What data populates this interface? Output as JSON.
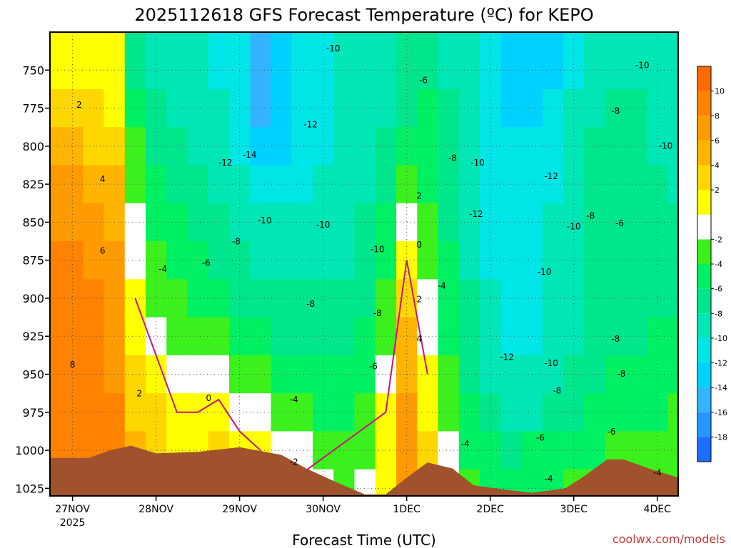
{
  "chart_data": {
    "type": "heatmap",
    "title": "2025112618 GFS Forecast Temperature (ºC) for KEPO",
    "xlabel": "Forecast Time (UTC)",
    "ylabel": "",
    "credit": "coolwx.com/models",
    "pressure_levels": [
      750,
      775,
      800,
      825,
      850,
      875,
      900,
      925,
      950,
      975,
      1000,
      1025
    ],
    "y_tick_labels": [
      "750",
      "775",
      "800",
      "825",
      "850",
      "875",
      "900",
      "925",
      "950",
      "975",
      "1000",
      "1025"
    ],
    "ylim": [
      725,
      1030
    ],
    "y_inverted": true,
    "x_ticks": [
      {
        "label": "27NOV",
        "sublabel": "2025",
        "day": 0
      },
      {
        "label": "28NOV",
        "sublabel": "",
        "day": 1
      },
      {
        "label": "29NOV",
        "sublabel": "",
        "day": 2
      },
      {
        "label": "30NOV",
        "sublabel": "",
        "day": 3
      },
      {
        "label": "1DEC",
        "sublabel": "",
        "day": 4
      },
      {
        "label": "2DEC",
        "sublabel": "",
        "day": 5
      },
      {
        "label": "3DEC",
        "sublabel": "",
        "day": 6
      },
      {
        "label": "4DEC",
        "sublabel": "",
        "day": 7
      }
    ],
    "xlim_days": [
      -0.27,
      7.25
    ],
    "grid": true,
    "colorbar": {
      "placement": "right",
      "levels": [
        -20,
        -18,
        -16,
        -14,
        -12,
        -10,
        -8,
        -6,
        -4,
        -2,
        0,
        2,
        4,
        6,
        8,
        10,
        12
      ],
      "tick_labels": [
        "-18",
        "-16",
        "-14",
        "-12",
        "-10",
        "-8",
        "-6",
        "-4",
        "-2",
        "2",
        "4",
        "6",
        "8",
        "10"
      ],
      "tick_values": [
        -18,
        -16,
        -14,
        -12,
        -10,
        -8,
        -6,
        -4,
        -2,
        2,
        4,
        6,
        8,
        10
      ],
      "colors": [
        "#1e6eff",
        "#2896ff",
        "#32b4ff",
        "#00d2ff",
        "#00e6e6",
        "#00e6b4",
        "#00e68c",
        "#00f064",
        "#3cf01e",
        "#ffffff",
        "#ffff00",
        "#ffd700",
        "#ffb400",
        "#ff9b00",
        "#ff8200",
        "#ff6a00"
      ]
    },
    "freezing_line_color": "#c8147a",
    "terrain_color": "#a0522d",
    "surface_pressure": [
      {
        "day": -0.27,
        "p": 1005
      },
      {
        "day": 0.2,
        "p": 1005
      },
      {
        "day": 0.45,
        "p": 1000
      },
      {
        "day": 0.7,
        "p": 997
      },
      {
        "day": 1.0,
        "p": 1002
      },
      {
        "day": 1.5,
        "p": 1001
      },
      {
        "day": 2.0,
        "p": 998
      },
      {
        "day": 2.5,
        "p": 1003
      },
      {
        "day": 2.8,
        "p": 1012
      },
      {
        "day": 3.2,
        "p": 1022
      },
      {
        "day": 3.5,
        "p": 1029
      },
      {
        "day": 3.75,
        "p": 1029
      },
      {
        "day": 4.0,
        "p": 1018
      },
      {
        "day": 4.25,
        "p": 1008
      },
      {
        "day": 4.55,
        "p": 1012
      },
      {
        "day": 4.8,
        "p": 1023
      },
      {
        "day": 5.2,
        "p": 1026
      },
      {
        "day": 5.5,
        "p": 1028
      },
      {
        "day": 5.9,
        "p": 1025
      },
      {
        "day": 6.1,
        "p": 1018
      },
      {
        "day": 6.4,
        "p": 1006
      },
      {
        "day": 6.6,
        "p": 1006
      },
      {
        "day": 6.9,
        "p": 1012
      },
      {
        "day": 7.25,
        "p": 1018
      }
    ],
    "time_days": [
      -0.27,
      0.0,
      0.25,
      0.5,
      0.75,
      1.0,
      1.25,
      1.5,
      1.75,
      2.0,
      2.25,
      2.5,
      2.75,
      3.0,
      3.25,
      3.5,
      3.75,
      4.0,
      4.25,
      4.5,
      4.75,
      5.0,
      5.25,
      5.5,
      5.75,
      6.0,
      6.25,
      6.5,
      6.75,
      7.0,
      7.25
    ],
    "temperature_c": [
      [
        1,
        1,
        1,
        0,
        -8,
        -9,
        -10,
        -10,
        -11,
        -12,
        -16,
        -14,
        -12,
        -12,
        -10,
        -10,
        -9,
        -8,
        -7,
        -9,
        -10,
        -11,
        -13,
        -14,
        -13,
        -11,
        -9,
        -9,
        -9,
        -10,
        -10
      ],
      [
        3,
        3,
        2,
        1,
        -6,
        -8,
        -9,
        -9,
        -10,
        -12,
        -15,
        -14,
        -12,
        -11,
        -10,
        -10,
        -9,
        -7,
        -6,
        -8,
        -10,
        -11,
        -13,
        -13,
        -12,
        -10,
        -9,
        -8,
        -8,
        -9,
        -9
      ],
      [
        5,
        5,
        3,
        2,
        -4,
        -7,
        -8,
        -9,
        -10,
        -11,
        -13,
        -14,
        -12,
        -11,
        -10,
        -9,
        -8,
        -6,
        -5,
        -7,
        -10,
        -11,
        -12,
        -12,
        -12,
        -10,
        -8,
        -8,
        -8,
        -9,
        -10
      ],
      [
        6,
        6,
        5,
        4,
        -3,
        -6,
        -7,
        -8,
        -9,
        -10,
        -11,
        -12,
        -11,
        -10,
        -10,
        -9,
        -7,
        -4,
        -5,
        -7,
        -9,
        -11,
        -11,
        -11,
        -11,
        -10,
        -8,
        -7,
        -7,
        -8,
        -9
      ],
      [
        7,
        7,
        6,
        5,
        -2,
        -5,
        -6,
        -7,
        -8,
        -9,
        -10,
        -10,
        -10,
        -10,
        -9,
        -8,
        -6,
        -1,
        -4,
        -7,
        -9,
        -12,
        -12,
        -11,
        -10,
        -9,
        -8,
        -7,
        -7,
        -8,
        -8
      ],
      [
        8,
        8,
        7,
        6,
        -1,
        -4,
        -5,
        -6,
        -7,
        -8,
        -9,
        -9,
        -9,
        -9,
        -9,
        -8,
        -5,
        0,
        -3,
        -6,
        -9,
        -11,
        -12,
        -11,
        -10,
        -9,
        -8,
        -7,
        -7,
        -7,
        -8
      ],
      [
        8,
        9,
        8,
        7,
        0,
        -3,
        -4,
        -5,
        -6,
        -7,
        -8,
        -8,
        -8,
        -8,
        -8,
        -7,
        -4,
        2,
        -2,
        -6,
        -8,
        -10,
        -12,
        -11,
        -10,
        -9,
        -8,
        -7,
        -7,
        -7,
        -7
      ],
      [
        9,
        9,
        8,
        7,
        1,
        -1,
        -3,
        -3,
        -4,
        -5,
        -6,
        -7,
        -7,
        -7,
        -7,
        -6,
        -3,
        4,
        -1,
        -5,
        -8,
        -10,
        -12,
        -11,
        -10,
        -9,
        -8,
        -7,
        -7,
        -6,
        -6
      ],
      [
        9,
        9,
        8,
        7,
        3,
        1,
        -1,
        -1,
        -2,
        -3,
        -4,
        -5,
        -5,
        -6,
        -6,
        -5,
        -2,
        5,
        0,
        -4,
        -7,
        -9,
        -10,
        -10,
        -9,
        -8,
        -7,
        -6,
        -6,
        -5,
        -5
      ],
      [
        9,
        9,
        8,
        8,
        3,
        2,
        0,
        0,
        1,
        -1,
        -2,
        -3,
        -4,
        -5,
        -5,
        -4,
        0,
        6,
        1,
        -3,
        -6,
        -8,
        -9,
        -9,
        -8,
        -7,
        -6,
        -5,
        -5,
        -5,
        -4
      ],
      [
        9,
        9,
        9,
        9,
        4,
        3,
        1,
        1,
        2,
        1,
        0,
        -1,
        -2,
        -3,
        -4,
        -3,
        1,
        7,
        2,
        -2,
        -5,
        -6,
        -7,
        -6,
        -6,
        -5,
        -5,
        -4,
        -4,
        -4,
        -3
      ],
      [
        9,
        9,
        9,
        9,
        4,
        3,
        2,
        2,
        3,
        2,
        1,
        0,
        -1,
        -2,
        -3,
        -2,
        1,
        7,
        2,
        -2,
        -4,
        -5,
        -5,
        -5,
        -5,
        -4,
        -4,
        -3,
        -3,
        -3,
        -3
      ]
    ],
    "contour_labels": [
      {
        "text": "-10",
        "day": 3.12,
        "p": 736
      },
      {
        "text": "-10",
        "day": 6.82,
        "p": 747
      },
      {
        "text": "-6",
        "day": 4.2,
        "p": 757
      },
      {
        "text": "-8",
        "day": 6.5,
        "p": 777
      },
      {
        "text": "2",
        "day": 0.08,
        "p": 773
      },
      {
        "text": "-12",
        "day": 2.85,
        "p": 786
      },
      {
        "text": "-14",
        "day": 2.12,
        "p": 806
      },
      {
        "text": "-12",
        "day": 1.83,
        "p": 811
      },
      {
        "text": "-8",
        "day": 4.55,
        "p": 808
      },
      {
        "text": "-10",
        "day": 4.85,
        "p": 811
      },
      {
        "text": "-12",
        "day": 5.73,
        "p": 820
      },
      {
        "text": "-10",
        "day": 7.1,
        "p": 800
      },
      {
        "text": "-8",
        "day": 6.2,
        "p": 846
      },
      {
        "text": "-6",
        "day": 6.55,
        "p": 851
      },
      {
        "text": "4",
        "day": 0.36,
        "p": 822
      },
      {
        "text": "2",
        "day": 4.15,
        "p": 833
      },
      {
        "text": "-10",
        "day": 2.3,
        "p": 849
      },
      {
        "text": "-10",
        "day": 3.0,
        "p": 852
      },
      {
        "text": "-12",
        "day": 4.83,
        "p": 845
      },
      {
        "text": "-10",
        "day": 6.0,
        "p": 853
      },
      {
        "text": "-8",
        "day": 1.96,
        "p": 863
      },
      {
        "text": "6",
        "day": 0.36,
        "p": 869
      },
      {
        "text": "0",
        "day": 4.15,
        "p": 865
      },
      {
        "text": "-10",
        "day": 3.65,
        "p": 868
      },
      {
        "text": "-6",
        "day": 1.6,
        "p": 877
      },
      {
        "text": "-4",
        "day": 1.08,
        "p": 881
      },
      {
        "text": "-10",
        "day": 5.65,
        "p": 883
      },
      {
        "text": "-4",
        "day": 4.42,
        "p": 892
      },
      {
        "text": "-8",
        "day": 2.85,
        "p": 904
      },
      {
        "text": "2",
        "day": 4.15,
        "p": 901
      },
      {
        "text": "-8",
        "day": 3.65,
        "p": 910
      },
      {
        "text": "-8",
        "day": 6.5,
        "p": 927
      },
      {
        "text": "4",
        "day": 4.15,
        "p": 927
      },
      {
        "text": "-12",
        "day": 5.2,
        "p": 939
      },
      {
        "text": "-10",
        "day": 5.73,
        "p": 943
      },
      {
        "text": "8",
        "day": 0.0,
        "p": 944
      },
      {
        "text": "-6",
        "day": 3.6,
        "p": 945
      },
      {
        "text": "-8",
        "day": 6.57,
        "p": 950
      },
      {
        "text": "2",
        "day": 0.8,
        "p": 963
      },
      {
        "text": "-8",
        "day": 5.8,
        "p": 961
      },
      {
        "text": "0",
        "day": 1.63,
        "p": 966
      },
      {
        "text": "-4",
        "day": 2.65,
        "p": 967
      },
      {
        "text": "-6",
        "day": 5.6,
        "p": 992
      },
      {
        "text": "-6",
        "day": 6.45,
        "p": 988
      },
      {
        "text": "-4",
        "day": 4.7,
        "p": 996
      },
      {
        "text": "-2",
        "day": 2.65,
        "p": 1008
      },
      {
        "text": "-4",
        "day": 5.7,
        "p": 1019
      },
      {
        "text": "-4",
        "day": 7.0,
        "p": 1015
      }
    ]
  }
}
